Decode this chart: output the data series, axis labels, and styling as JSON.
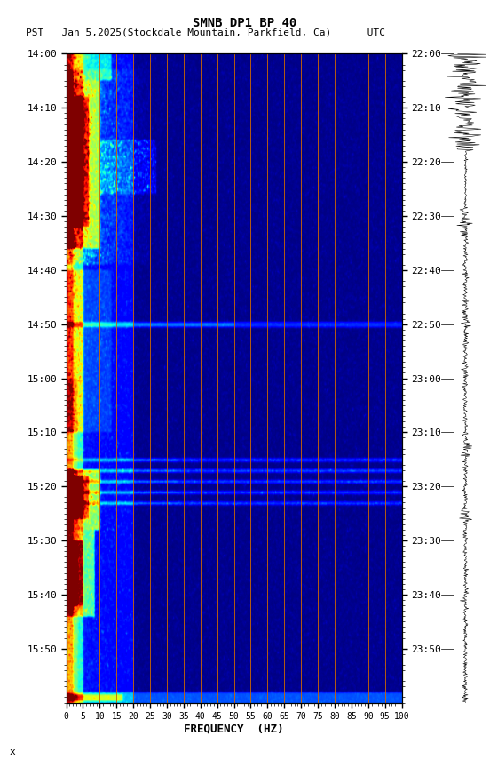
{
  "title_line1": "SMNB DP1 BP 40",
  "title_line2": "PST   Jan 5,2025(Stockdale Mountain, Parkfield, Ca)      UTC",
  "xlabel": "FREQUENCY  (HZ)",
  "freq_ticks": [
    0,
    5,
    10,
    15,
    20,
    25,
    30,
    35,
    40,
    45,
    50,
    55,
    60,
    65,
    70,
    75,
    80,
    85,
    90,
    95,
    100
  ],
  "left_time_labels": [
    "14:00",
    "14:10",
    "14:20",
    "14:30",
    "14:40",
    "14:50",
    "15:00",
    "15:10",
    "15:20",
    "15:30",
    "15:40",
    "15:50"
  ],
  "right_time_labels": [
    "22:00",
    "22:10",
    "22:20",
    "22:30",
    "22:40",
    "22:50",
    "23:00",
    "23:10",
    "23:20",
    "23:30",
    "23:40",
    "23:50"
  ],
  "fig_width": 5.52,
  "fig_height": 8.64,
  "bg_color": "#ffffff",
  "orange_freqs": [
    5,
    10,
    15,
    20,
    25,
    30,
    35,
    40,
    45,
    50,
    55,
    60,
    65,
    70,
    75,
    80,
    85,
    90,
    95,
    100
  ]
}
